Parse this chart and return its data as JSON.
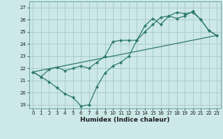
{
  "title": "",
  "xlabel": "Humidex (Indice chaleur)",
  "ylabel": "",
  "background_color": "#cce8e8",
  "grid_color": "#aacccc",
  "line_color": "#2e7a6e",
  "xlim": [
    -0.5,
    23.5
  ],
  "ylim": [
    18.7,
    27.5
  ],
  "yticks": [
    19,
    20,
    21,
    22,
    23,
    24,
    25,
    26,
    27
  ],
  "xticks": [
    0,
    1,
    2,
    3,
    4,
    5,
    6,
    7,
    8,
    9,
    10,
    11,
    12,
    13,
    14,
    15,
    16,
    17,
    18,
    19,
    20,
    21,
    22,
    23
  ],
  "line1_x": [
    0,
    1,
    2,
    3,
    4,
    5,
    6,
    7,
    8,
    9,
    10,
    11,
    12,
    13,
    14,
    15,
    16,
    17,
    18,
    19,
    20,
    21,
    22,
    23
  ],
  "line1_y": [
    21.7,
    21.3,
    20.9,
    20.4,
    19.9,
    19.6,
    18.9,
    19.0,
    20.5,
    21.6,
    22.2,
    22.5,
    23.0,
    24.3,
    25.5,
    26.1,
    25.6,
    26.3,
    26.1,
    26.3,
    26.7,
    26.0,
    25.1,
    24.7
  ],
  "line2_x": [
    0,
    1,
    2,
    3,
    4,
    5,
    6,
    7,
    8,
    9,
    10,
    11,
    12,
    13,
    14,
    15,
    16,
    17,
    18,
    19,
    20,
    21,
    22,
    23
  ],
  "line2_y": [
    21.7,
    21.3,
    21.9,
    22.1,
    21.8,
    22.0,
    22.2,
    22.0,
    22.5,
    23.0,
    24.2,
    24.3,
    24.3,
    24.3,
    25.0,
    25.6,
    26.2,
    26.3,
    26.6,
    26.5,
    26.6,
    26.0,
    25.1,
    24.7
  ],
  "line3_x": [
    0,
    23
  ],
  "line3_y": [
    21.7,
    24.7
  ],
  "marker": "D",
  "marker_size": 2.0,
  "linewidth": 0.9,
  "tick_fontsize": 5.0,
  "xlabel_fontsize": 6.5
}
